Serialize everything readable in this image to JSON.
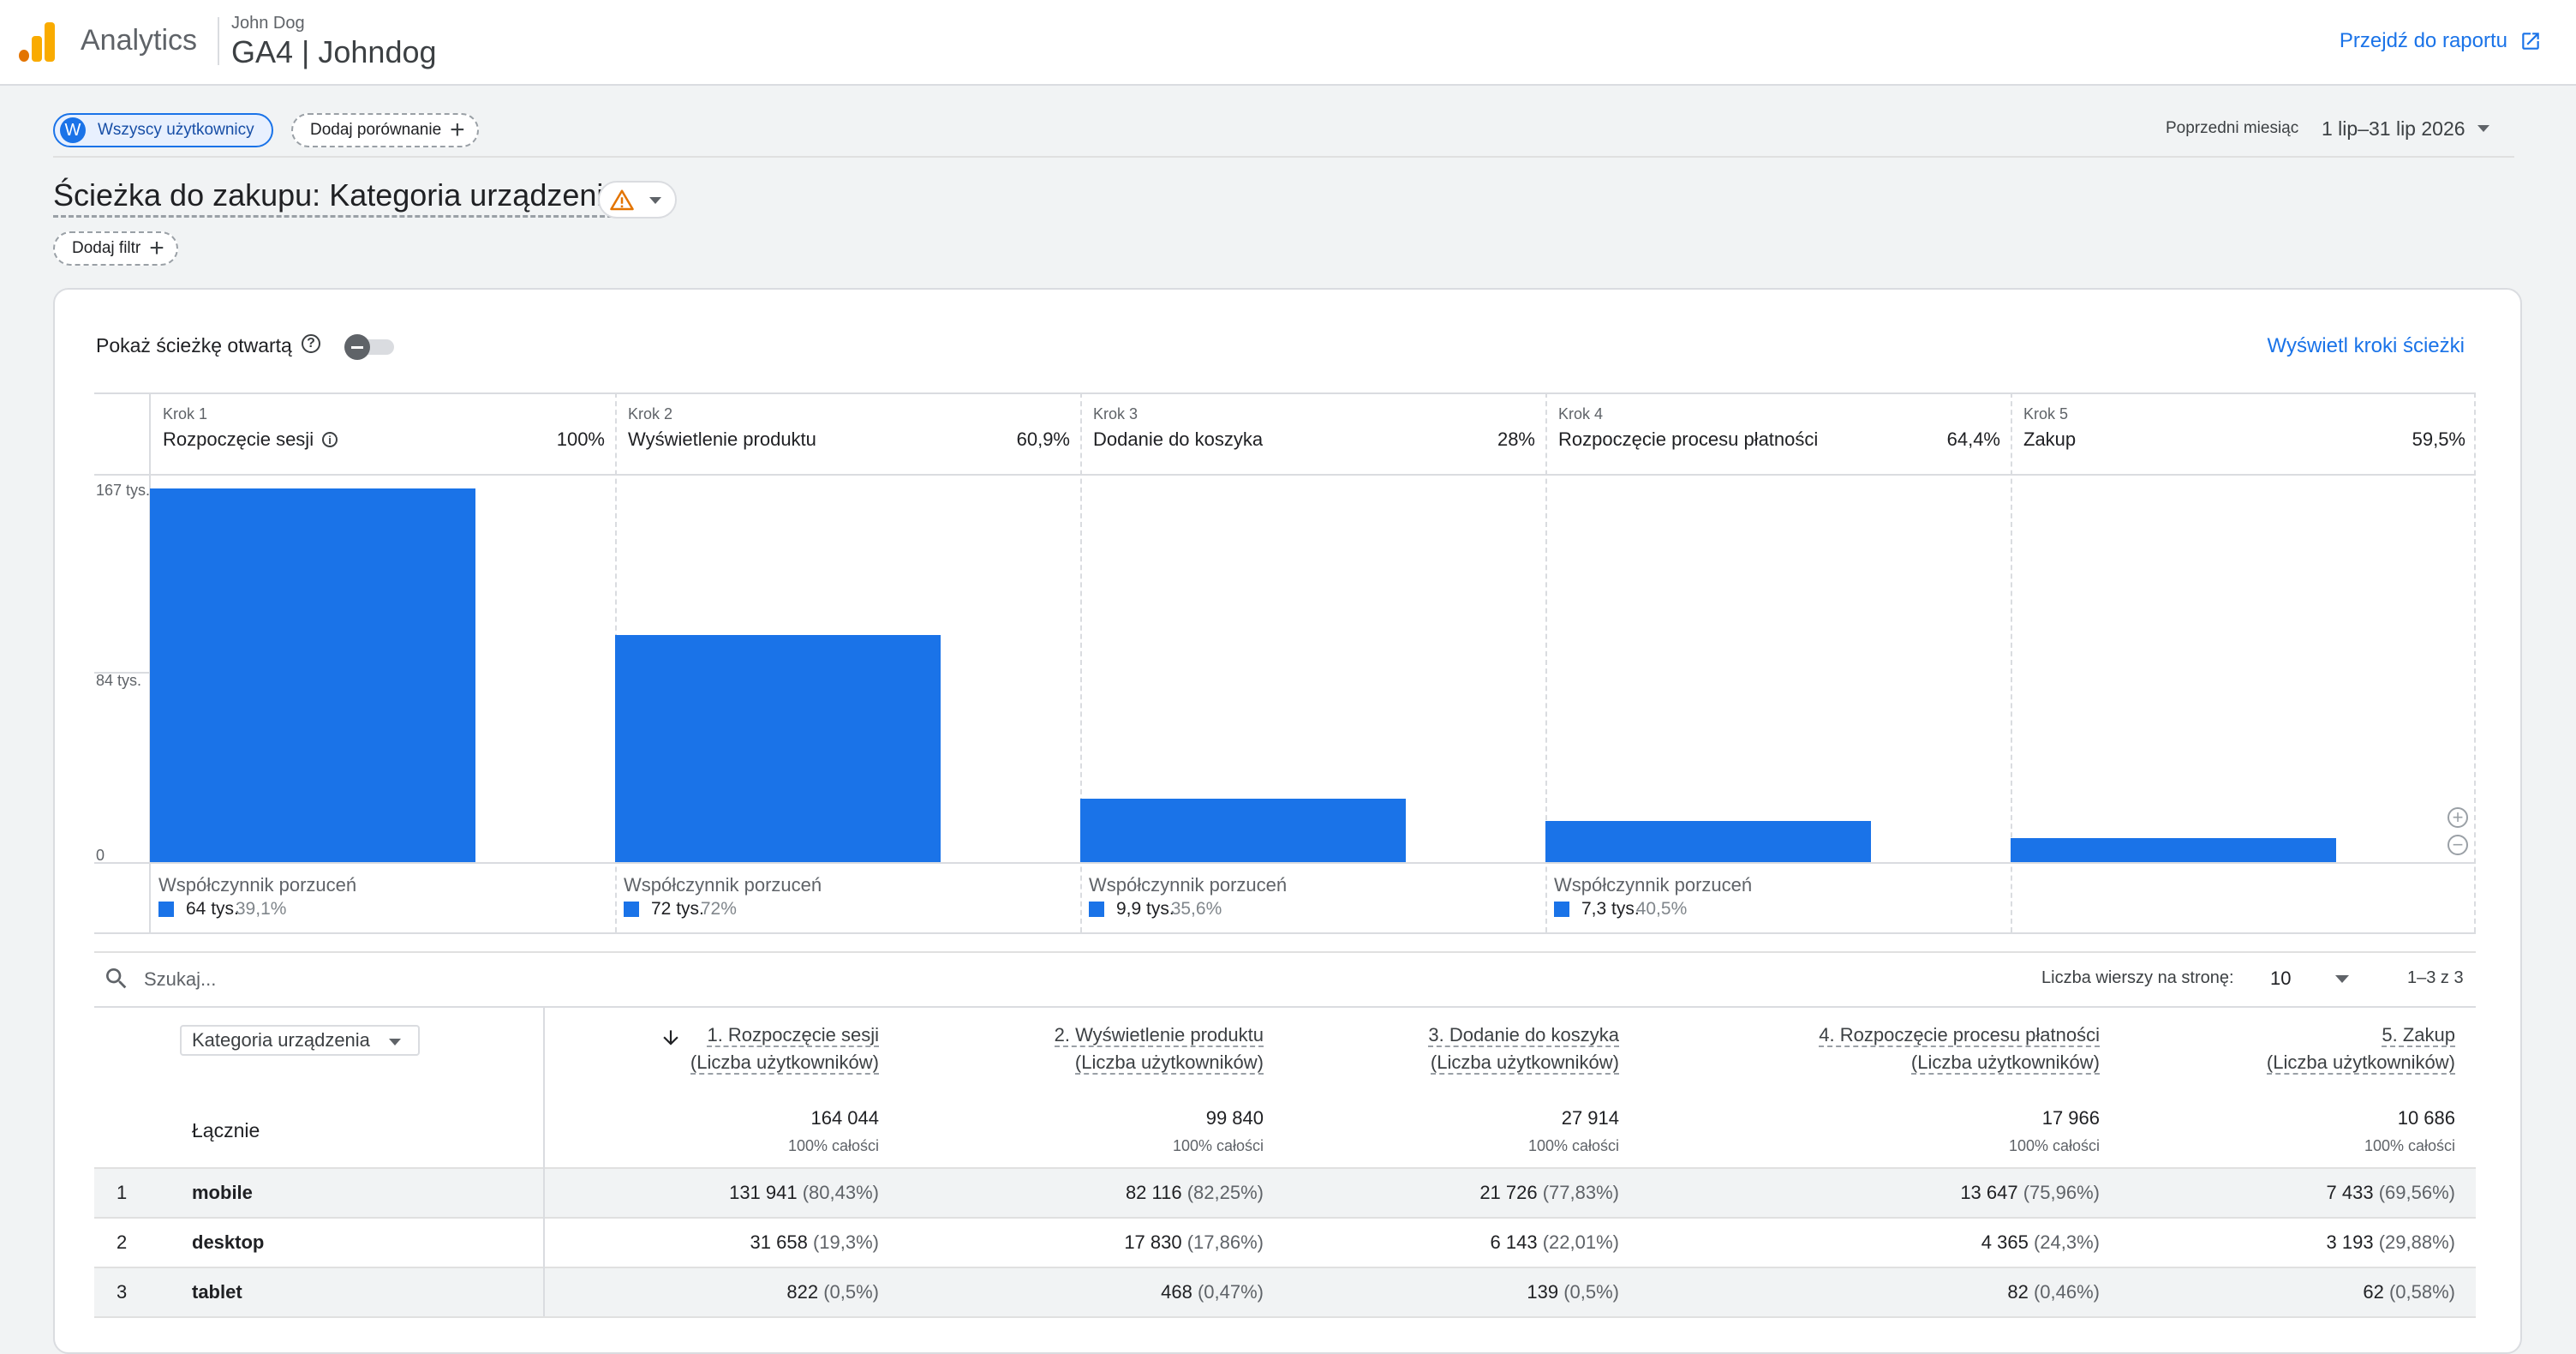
{
  "header": {
    "app_name": "Analytics",
    "account_user": "John Dog",
    "property": "GA4 | Johndog",
    "report_link": "Przejdź do raportu"
  },
  "controls": {
    "segment_avatar": "W",
    "segment_label": "Wszyscy użytkownicy",
    "compare_label": "Dodaj porównanie",
    "date_preset": "Poprzedni miesiąc",
    "date_range": "1 lip–31 lip 2026",
    "filter_label": "Dodaj filtr"
  },
  "page": {
    "title": "Ścieżka do zakupu: Kategoria urządzenia"
  },
  "card": {
    "open_funnel_label": "Pokaż ścieżkę otwartą",
    "steps_link": "Wyświetl kroki ścieżki",
    "open_funnel_on": false
  },
  "chart_data": {
    "type": "bar",
    "y_ticks": [
      "167 tys.",
      "84 tys.",
      "0"
    ],
    "ylim": [
      0,
      167000
    ],
    "categories": [
      "Rozpoczęcie sesji",
      "Wyświetlenie produktu",
      "Dodanie do koszyka",
      "Rozpoczęcie procesu płatności",
      "Zakup"
    ],
    "values": [
      164044,
      99840,
      27914,
      17966,
      10686
    ],
    "steps": [
      {
        "num": "Krok 1",
        "name": "Rozpoczęcie sesji",
        "pct": "100%",
        "abandon_label": "Współczynnik porzuceń",
        "abandon_value": "64 tys.",
        "abandon_pct": "39,1%"
      },
      {
        "num": "Krok 2",
        "name": "Wyświetlenie produktu",
        "pct": "60,9%",
        "abandon_label": "Współczynnik porzuceń",
        "abandon_value": "72 tys.",
        "abandon_pct": "72%"
      },
      {
        "num": "Krok 3",
        "name": "Dodanie do koszyka",
        "pct": "28%",
        "abandon_label": "Współczynnik porzuceń",
        "abandon_value": "9,9 tys.",
        "abandon_pct": "35,6%"
      },
      {
        "num": "Krok 4",
        "name": "Rozpoczęcie procesu płatności",
        "pct": "64,4%",
        "abandon_label": "Współczynnik porzuceń",
        "abandon_value": "7,3 tys.",
        "abandon_pct": "40,5%"
      },
      {
        "num": "Krok 5",
        "name": "Zakup",
        "pct": "59,5%"
      }
    ],
    "bar_color": "#1a73e8"
  },
  "table": {
    "search_placeholder": "Szukaj...",
    "rows_per_page_label": "Liczba wierszy na stronę:",
    "rows_per_page": "10",
    "range": "1–3 z 3",
    "dimension": "Kategoria urządzenia",
    "columns": [
      {
        "title": "1. Rozpoczęcie sesji",
        "sub": "(Liczba użytkowników)"
      },
      {
        "title": "2. Wyświetlenie produktu",
        "sub": "(Liczba użytkowników)"
      },
      {
        "title": "3. Dodanie do koszyka",
        "sub": "(Liczba użytkowników)"
      },
      {
        "title": "4. Rozpoczęcie procesu płatności",
        "sub": "(Liczba użytkowników)"
      },
      {
        "title": "5. Zakup",
        "sub": "(Liczba użytkowników)"
      }
    ],
    "total_label": "Łącznie",
    "totals": [
      {
        "value": "164 044",
        "sub": "100% całości"
      },
      {
        "value": "99 840",
        "sub": "100% całości"
      },
      {
        "value": "27 914",
        "sub": "100% całości"
      },
      {
        "value": "17 966",
        "sub": "100% całości"
      },
      {
        "value": "10 686",
        "sub": "100% całości"
      }
    ],
    "rows": [
      {
        "idx": "1",
        "dim": "mobile",
        "cells": [
          {
            "v": "131 941",
            "p": "(80,43%)"
          },
          {
            "v": "82 116",
            "p": "(82,25%)"
          },
          {
            "v": "21 726",
            "p": "(77,83%)"
          },
          {
            "v": "13 647",
            "p": "(75,96%)"
          },
          {
            "v": "7 433",
            "p": "(69,56%)"
          }
        ]
      },
      {
        "idx": "2",
        "dim": "desktop",
        "cells": [
          {
            "v": "31 658",
            "p": "(19,3%)"
          },
          {
            "v": "17 830",
            "p": "(17,86%)"
          },
          {
            "v": "6 143",
            "p": "(22,01%)"
          },
          {
            "v": "4 365",
            "p": "(24,3%)"
          },
          {
            "v": "3 193",
            "p": "(29,88%)"
          }
        ]
      },
      {
        "idx": "3",
        "dim": "tablet",
        "cells": [
          {
            "v": "822",
            "p": "(0,5%)"
          },
          {
            "v": "468",
            "p": "(0,47%)"
          },
          {
            "v": "139",
            "p": "(0,5%)"
          },
          {
            "v": "82",
            "p": "(0,46%)"
          },
          {
            "v": "62",
            "p": "(0,58%)"
          }
        ]
      }
    ]
  }
}
